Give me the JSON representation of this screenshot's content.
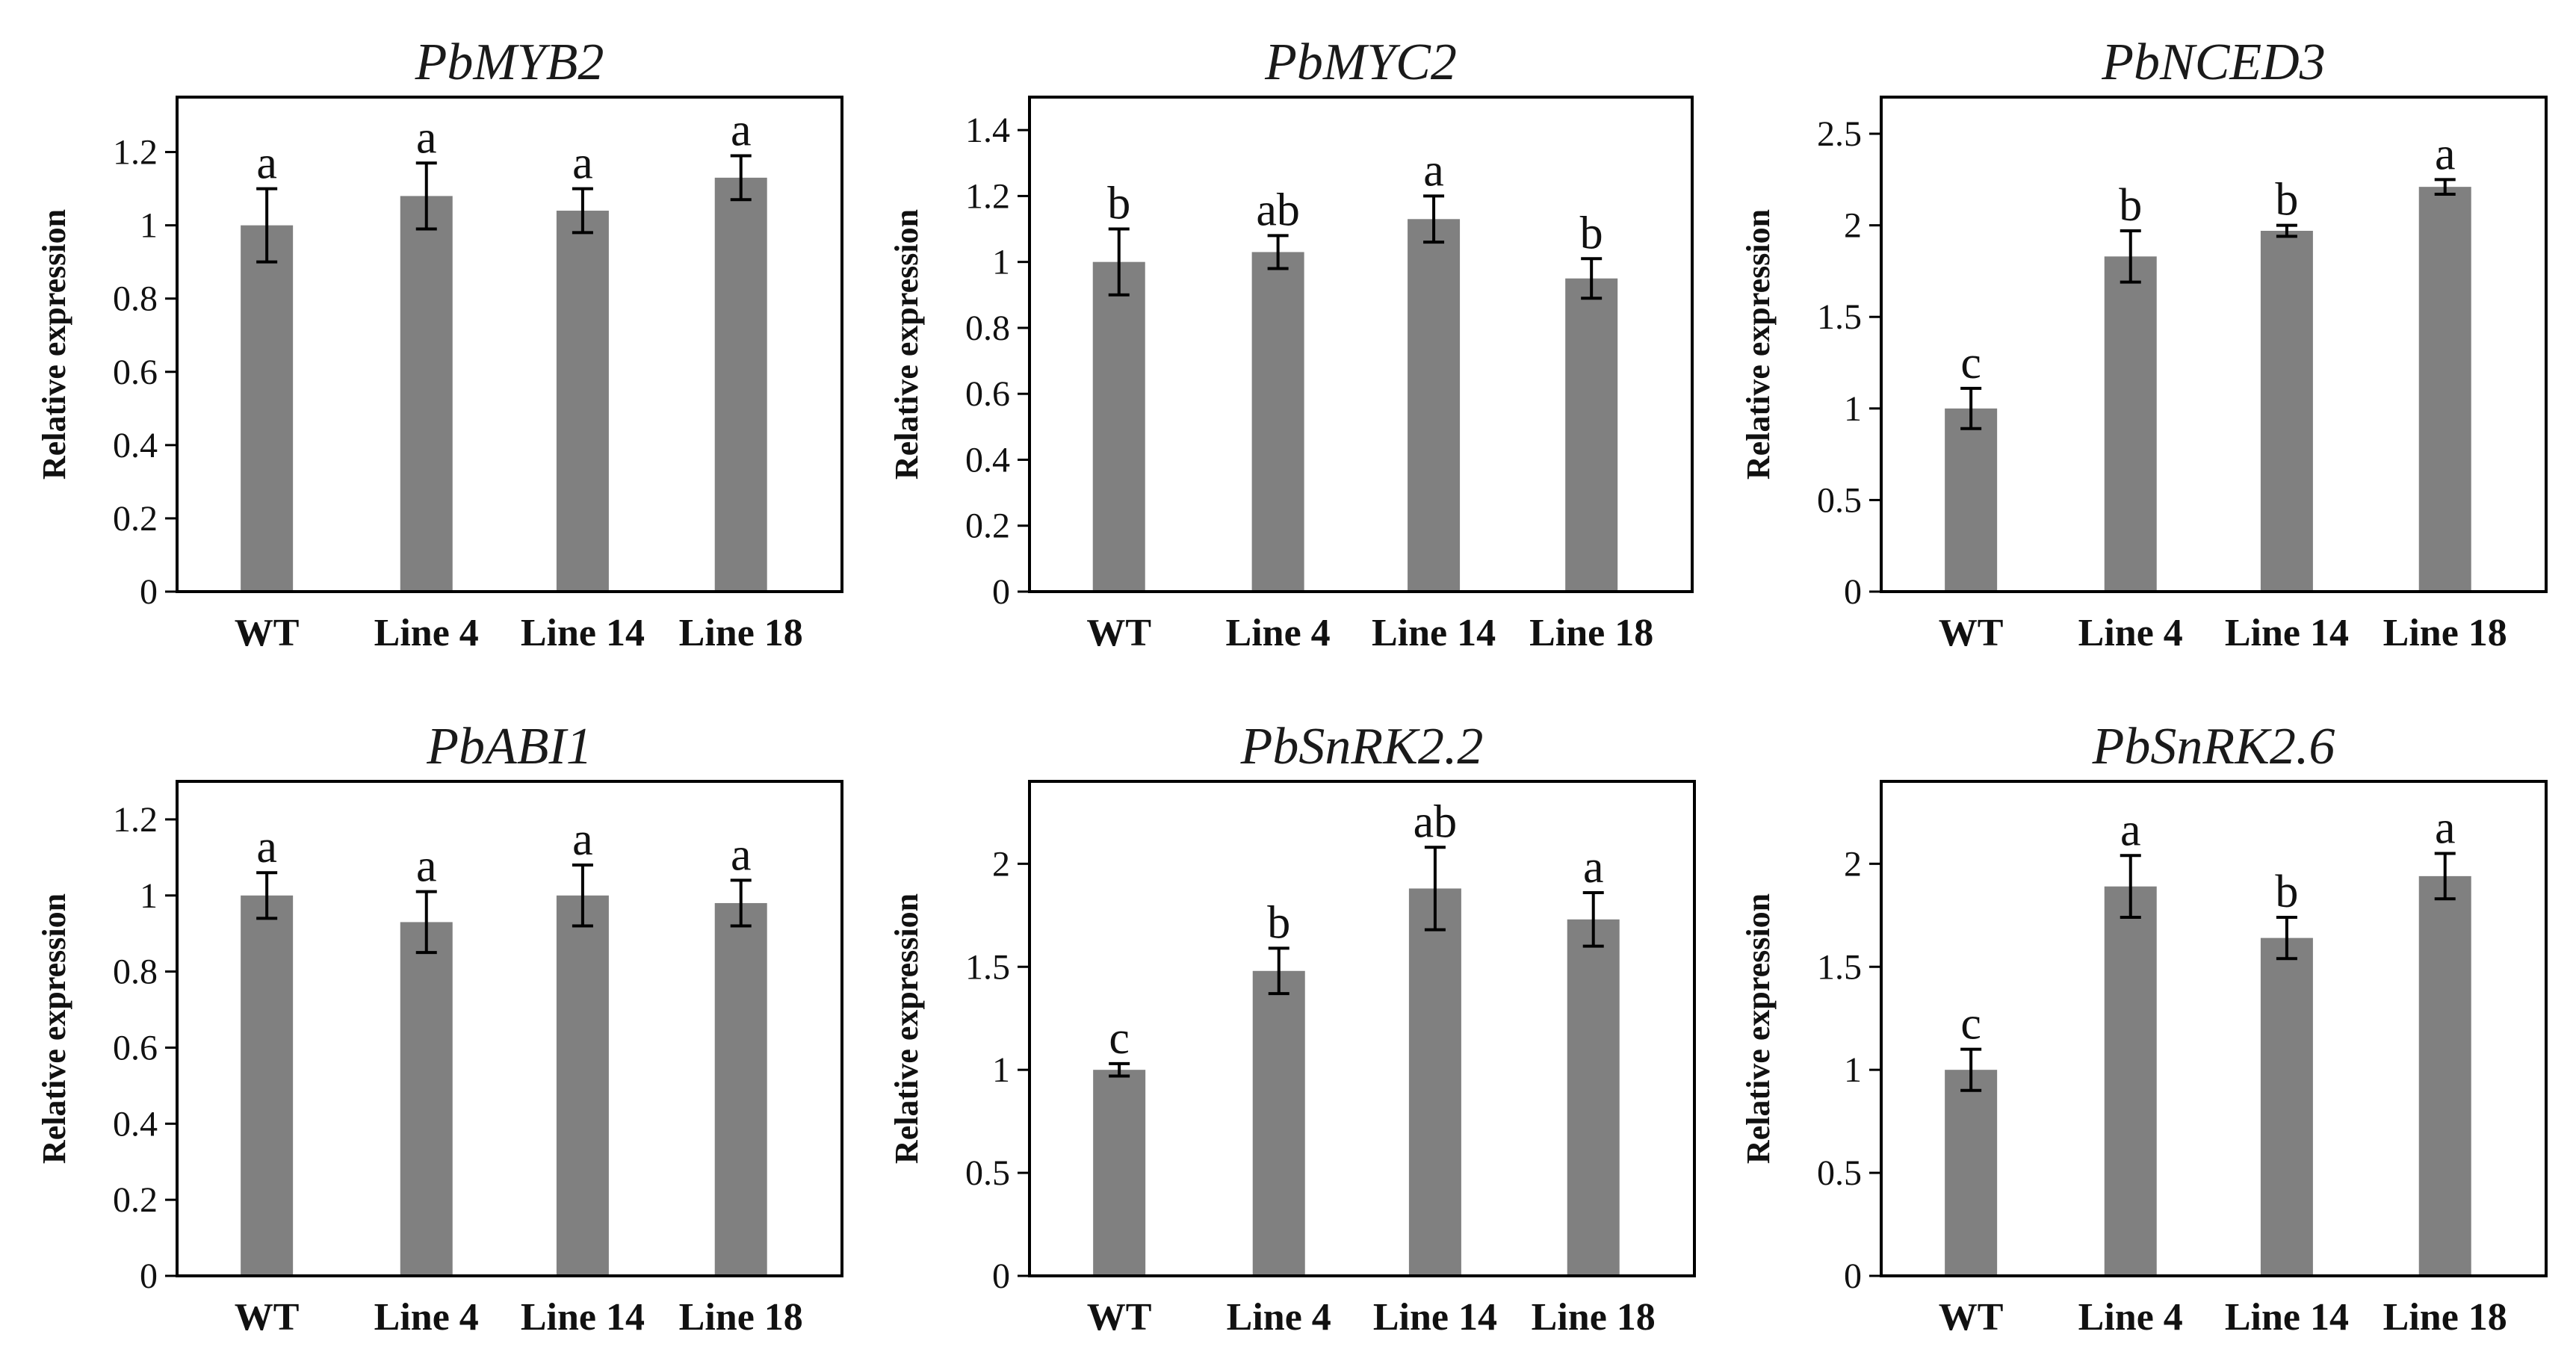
{
  "figure": {
    "bar_color": "#808080",
    "axis_color": "#000000"
  },
  "chart_data": [
    {
      "type": "bar",
      "title": "PbMYB2",
      "ylabel": "Relative expression",
      "categories": [
        "WT",
        "Line 4",
        "Line 14",
        "Line 18"
      ],
      "values": [
        1.0,
        1.08,
        1.04,
        1.13
      ],
      "errors": [
        0.1,
        0.09,
        0.06,
        0.06
      ],
      "significance": [
        "a",
        "a",
        "a",
        "a"
      ],
      "ylim": [
        0,
        1.35
      ],
      "yticks": [
        0,
        0.2,
        0.4,
        0.6,
        0.8,
        1,
        1.2
      ],
      "ytick_labels": [
        "0",
        "0.2",
        "0.4",
        "0.6",
        "0.8",
        "1",
        "1.2"
      ]
    },
    {
      "type": "bar",
      "title": "PbMYC2",
      "ylabel": "Relative expression",
      "categories": [
        "WT",
        "Line 4",
        "Line 14",
        "Line 18"
      ],
      "values": [
        1.0,
        1.03,
        1.13,
        0.95
      ],
      "errors": [
        0.1,
        0.05,
        0.07,
        0.06
      ],
      "significance": [
        "b",
        "ab",
        "a",
        "b"
      ],
      "ylim": [
        0,
        1.5
      ],
      "yticks": [
        0,
        0.2,
        0.4,
        0.6,
        0.8,
        1,
        1.2,
        1.4
      ],
      "ytick_labels": [
        "0",
        "0.2",
        "0.4",
        "0.6",
        "0.8",
        "1",
        "1.2",
        "1.4"
      ]
    },
    {
      "type": "bar",
      "title": "PbNCED3",
      "ylabel": "Relative expression",
      "categories": [
        "WT",
        "Line 4",
        "Line 14",
        "Line 18"
      ],
      "values": [
        1.0,
        1.83,
        1.97,
        2.21
      ],
      "errors": [
        0.11,
        0.14,
        0.03,
        0.04
      ],
      "significance": [
        "c",
        "b",
        "b",
        "a"
      ],
      "ylim": [
        0,
        2.7
      ],
      "yticks": [
        0,
        0.5,
        1,
        1.5,
        2,
        2.5
      ],
      "ytick_labels": [
        "0",
        "0.5",
        "1",
        "1.5",
        "2",
        "2.5"
      ]
    },
    {
      "type": "bar",
      "title": "PbABI1",
      "ylabel": "Relative expression",
      "categories": [
        "WT",
        "Line 4",
        "Line 14",
        "Line 18"
      ],
      "values": [
        1.0,
        0.93,
        1.0,
        0.98
      ],
      "errors": [
        0.06,
        0.08,
        0.08,
        0.06
      ],
      "significance": [
        "a",
        "a",
        "a",
        "a"
      ],
      "ylim": [
        0,
        1.3
      ],
      "yticks": [
        0,
        0.2,
        0.4,
        0.6,
        0.8,
        1,
        1.2
      ],
      "ytick_labels": [
        "0",
        "0.2",
        "0.4",
        "0.6",
        "0.8",
        "1",
        "1.2"
      ]
    },
    {
      "type": "bar",
      "title": "PbSnRK2.2",
      "ylabel": "Relative expression",
      "categories": [
        "WT",
        "Line 4",
        "Line 14",
        "Line 18"
      ],
      "values": [
        1.0,
        1.48,
        1.88,
        1.73
      ],
      "errors": [
        0.03,
        0.11,
        0.2,
        0.13
      ],
      "significance": [
        "c",
        "b",
        "ab",
        "a"
      ],
      "ylim": [
        0,
        2.4
      ],
      "yticks": [
        0,
        0.5,
        1,
        1.5,
        2
      ],
      "ytick_labels": [
        "0",
        "0.5",
        "1",
        "1.5",
        "2"
      ]
    },
    {
      "type": "bar",
      "title": "PbSnRK2.6",
      "ylabel": "Relative expression",
      "categories": [
        "WT",
        "Line 4",
        "Line 14",
        "Line 18"
      ],
      "values": [
        1.0,
        1.89,
        1.64,
        1.94
      ],
      "errors": [
        0.1,
        0.15,
        0.1,
        0.11
      ],
      "significance": [
        "c",
        "a",
        "b",
        "a"
      ],
      "ylim": [
        0,
        2.4
      ],
      "yticks": [
        0,
        0.5,
        1,
        1.5,
        2
      ],
      "ytick_labels": [
        "0",
        "0.5",
        "1",
        "1.5",
        "2"
      ]
    }
  ]
}
